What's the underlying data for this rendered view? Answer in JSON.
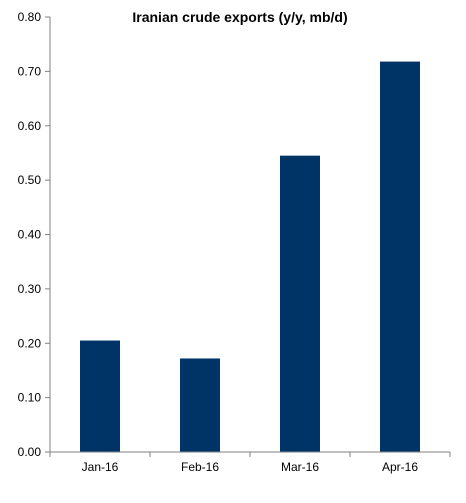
{
  "chart_data": {
    "type": "bar",
    "title": "Iranian crude exports (y/y, mb/d)",
    "categories": [
      "Jan-16",
      "Feb-16",
      "Mar-16",
      "Apr-16"
    ],
    "values": [
      0.205,
      0.172,
      0.545,
      0.718
    ],
    "ylim": [
      0,
      0.8
    ],
    "yticks": [
      0.0,
      0.1,
      0.2,
      0.3,
      0.4,
      0.5,
      0.6,
      0.7,
      0.8
    ],
    "ytick_labels": [
      "0.00",
      "0.10",
      "0.20",
      "0.30",
      "0.40",
      "0.50",
      "0.60",
      "0.70",
      "0.80"
    ],
    "xlabel": "",
    "ylabel": "",
    "grid": false,
    "legend": "none",
    "bar_color": "#003366"
  }
}
